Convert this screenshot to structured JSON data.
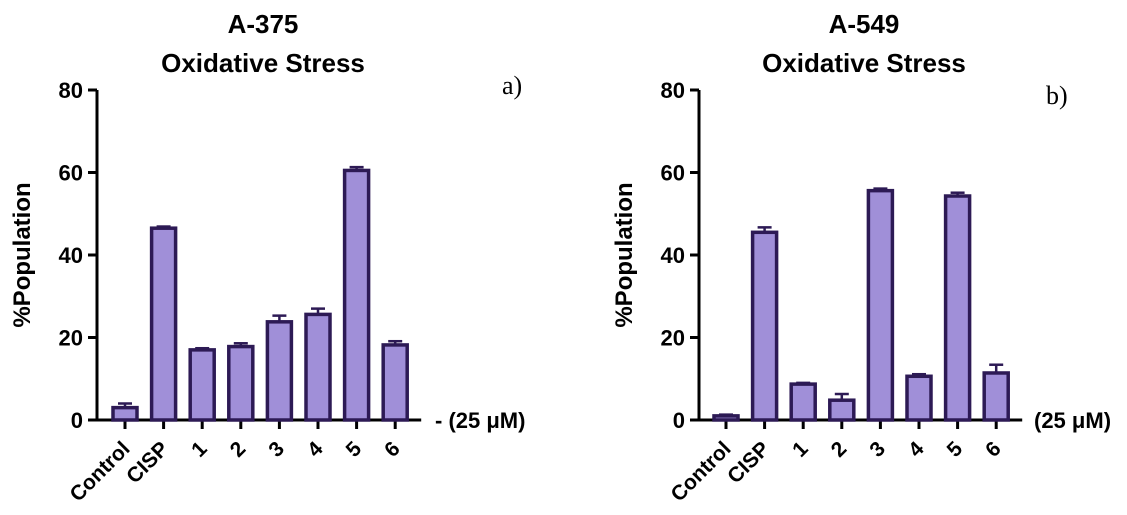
{
  "chart_data": [
    {
      "type": "bar",
      "title_line1": "A-375",
      "title_line2": "Oxidative Stress",
      "panel_label": "a)",
      "ylabel": "%Population",
      "xlabel": "",
      "ylim": [
        0,
        80
      ],
      "yticks": [
        "0",
        "20",
        "40",
        "60",
        "80"
      ],
      "dose_label": "- (25 μM)",
      "categories": [
        "Control",
        "CISP",
        "1",
        "2",
        "3",
        "4",
        "5",
        "6"
      ],
      "values": [
        3.0,
        46.5,
        17.0,
        17.8,
        23.8,
        25.6,
        60.5,
        18.2
      ],
      "errors": [
        1.0,
        0.4,
        0.4,
        0.8,
        1.5,
        1.4,
        0.8,
        0.9
      ],
      "bar_fill": "#a08fd8",
      "bar_stroke": "#2d1a55"
    },
    {
      "type": "bar",
      "title_line1": "A-549",
      "title_line2": "Oxidative Stress",
      "panel_label": "b)",
      "ylabel": "%Population",
      "xlabel": "",
      "ylim": [
        0,
        80
      ],
      "yticks": [
        "0",
        "20",
        "40",
        "60",
        "80"
      ],
      "dose_label": "(25 μM)",
      "categories": [
        "Control",
        "CISP",
        "1",
        "2",
        "3",
        "4",
        "5",
        "6"
      ],
      "values": [
        1.0,
        45.5,
        8.7,
        4.8,
        55.6,
        10.6,
        54.3,
        11.4
      ],
      "errors": [
        0.3,
        1.2,
        0.3,
        1.5,
        0.5,
        0.5,
        0.8,
        2.0
      ],
      "bar_fill": "#a08fd8",
      "bar_stroke": "#2d1a55"
    }
  ]
}
